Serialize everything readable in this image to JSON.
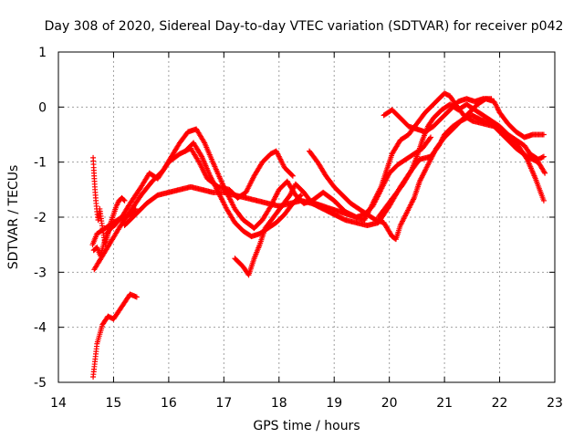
{
  "chart_data": {
    "type": "scatter",
    "title": "Day 308 of 2020, Sidereal Day-to-day VTEC variation (SDTVAR) for receiver p042",
    "xlabel": "GPS time / hours",
    "ylabel": "SDTVAR / TECUs",
    "xlim": [
      14,
      23
    ],
    "ylim": [
      -5,
      1
    ],
    "xticks": [
      "14",
      "15",
      "16",
      "17",
      "18",
      "19",
      "20",
      "21",
      "22",
      "23"
    ],
    "yticks": [
      "1",
      "0",
      "-1",
      "-2",
      "-3",
      "-4",
      "-5"
    ],
    "grid": true,
    "marker": "+",
    "color": "#ff0000",
    "series": [
      {
        "name": "track-1",
        "points": [
          [
            14.63,
            -4.9
          ],
          [
            14.7,
            -4.3
          ],
          [
            14.8,
            -3.95
          ],
          [
            14.9,
            -3.8
          ],
          [
            15.0,
            -3.85
          ],
          [
            15.1,
            -3.7
          ],
          [
            15.2,
            -3.55
          ],
          [
            15.3,
            -3.4
          ],
          [
            15.42,
            -3.45
          ]
        ]
      },
      {
        "name": "track-2",
        "points": [
          [
            14.62,
            -2.5
          ],
          [
            14.7,
            -2.3
          ],
          [
            14.85,
            -2.2
          ],
          [
            15.0,
            -2.1
          ],
          [
            15.15,
            -2.0
          ],
          [
            15.3,
            -1.75
          ],
          [
            15.5,
            -1.45
          ],
          [
            15.65,
            -1.2
          ],
          [
            15.8,
            -1.3
          ],
          [
            16.0,
            -1.0
          ],
          [
            16.2,
            -0.85
          ],
          [
            16.4,
            -0.75
          ],
          [
            16.55,
            -1.0
          ],
          [
            16.7,
            -1.3
          ],
          [
            16.9,
            -1.45
          ],
          [
            17.1,
            -1.5
          ],
          [
            17.25,
            -1.65
          ],
          [
            17.4,
            -1.55
          ],
          [
            17.55,
            -1.25
          ],
          [
            17.7,
            -1.0
          ],
          [
            17.85,
            -0.85
          ],
          [
            17.95,
            -0.8
          ],
          [
            18.1,
            -1.1
          ],
          [
            18.25,
            -1.25
          ]
        ]
      },
      {
        "name": "track-3",
        "points": [
          [
            14.65,
            -2.95
          ],
          [
            14.8,
            -2.7
          ],
          [
            14.95,
            -2.45
          ],
          [
            15.1,
            -2.2
          ],
          [
            15.3,
            -1.9
          ],
          [
            15.5,
            -1.6
          ],
          [
            15.7,
            -1.35
          ],
          [
            15.9,
            -1.15
          ],
          [
            16.05,
            -0.9
          ],
          [
            16.2,
            -0.65
          ],
          [
            16.35,
            -0.45
          ],
          [
            16.5,
            -0.4
          ],
          [
            16.65,
            -0.65
          ],
          [
            16.8,
            -1.0
          ],
          [
            17.0,
            -1.45
          ],
          [
            17.2,
            -1.85
          ],
          [
            17.35,
            -2.05
          ],
          [
            17.55,
            -2.2
          ],
          [
            17.7,
            -2.05
          ],
          [
            17.85,
            -1.8
          ],
          [
            18.0,
            -1.5
          ],
          [
            18.15,
            -1.35
          ],
          [
            18.3,
            -1.6
          ],
          [
            18.45,
            -1.75
          ],
          [
            18.6,
            -1.7
          ],
          [
            18.8,
            -1.55
          ],
          [
            19.0,
            -1.7
          ],
          [
            19.2,
            -1.9
          ],
          [
            19.4,
            -2.0
          ],
          [
            19.55,
            -2.05
          ],
          [
            19.7,
            -1.75
          ],
          [
            19.85,
            -1.45
          ],
          [
            19.95,
            -1.15
          ],
          [
            20.05,
            -0.85
          ],
          [
            20.2,
            -0.6
          ],
          [
            20.35,
            -0.5
          ],
          [
            20.5,
            -0.3
          ],
          [
            20.65,
            -0.1
          ],
          [
            20.8,
            0.05
          ],
          [
            20.9,
            0.15
          ],
          [
            21.0,
            0.25
          ],
          [
            21.1,
            0.2
          ],
          [
            21.2,
            0.05
          ],
          [
            21.35,
            -0.15
          ],
          [
            21.5,
            -0.25
          ],
          [
            21.7,
            -0.3
          ],
          [
            21.9,
            -0.35
          ],
          [
            22.1,
            -0.55
          ],
          [
            22.3,
            -0.75
          ],
          [
            22.5,
            -0.9
          ],
          [
            22.7,
            -1.0
          ],
          [
            22.82,
            -1.2
          ]
        ]
      },
      {
        "name": "track-4",
        "points": [
          [
            15.2,
            -2.15
          ],
          [
            15.4,
            -1.95
          ],
          [
            15.6,
            -1.75
          ],
          [
            15.8,
            -1.6
          ],
          [
            16.0,
            -1.55
          ],
          [
            16.2,
            -1.5
          ],
          [
            16.4,
            -1.45
          ],
          [
            16.6,
            -1.5
          ],
          [
            16.8,
            -1.55
          ],
          [
            17.0,
            -1.55
          ],
          [
            17.2,
            -1.6
          ],
          [
            17.4,
            -1.65
          ],
          [
            17.6,
            -1.7
          ],
          [
            17.8,
            -1.75
          ],
          [
            18.0,
            -1.8
          ],
          [
            18.2,
            -1.75
          ],
          [
            18.4,
            -1.7
          ],
          [
            18.6,
            -1.75
          ],
          [
            18.8,
            -1.85
          ],
          [
            19.0,
            -1.95
          ],
          [
            19.2,
            -2.05
          ],
          [
            19.4,
            -2.1
          ],
          [
            19.6,
            -2.15
          ],
          [
            19.8,
            -2.1
          ],
          [
            20.0,
            -1.8
          ],
          [
            20.2,
            -1.45
          ],
          [
            20.4,
            -1.15
          ],
          [
            20.55,
            -0.95
          ],
          [
            20.75,
            -0.9
          ],
          [
            20.9,
            -0.7
          ],
          [
            21.0,
            -0.5
          ],
          [
            21.15,
            -0.35
          ],
          [
            21.3,
            -0.25
          ],
          [
            21.5,
            -0.15
          ],
          [
            21.7,
            -0.25
          ],
          [
            21.9,
            -0.3
          ],
          [
            22.1,
            -0.45
          ],
          [
            22.3,
            -0.65
          ],
          [
            22.5,
            -0.95
          ],
          [
            22.65,
            -1.3
          ],
          [
            22.8,
            -1.7
          ]
        ]
      },
      {
        "name": "track-5",
        "points": [
          [
            17.2,
            -2.75
          ],
          [
            17.35,
            -2.9
          ],
          [
            17.45,
            -3.05
          ],
          [
            17.55,
            -2.75
          ],
          [
            17.65,
            -2.5
          ],
          [
            17.75,
            -2.2
          ],
          [
            17.9,
            -2.0
          ],
          [
            18.05,
            -1.8
          ],
          [
            18.2,
            -1.6
          ],
          [
            18.3,
            -1.4
          ],
          [
            18.45,
            -1.55
          ],
          [
            18.6,
            -1.75
          ],
          [
            18.75,
            -1.8
          ]
        ]
      },
      {
        "name": "track-6",
        "points": [
          [
            16.3,
            -0.8
          ],
          [
            16.45,
            -0.65
          ],
          [
            16.6,
            -0.9
          ],
          [
            16.75,
            -1.25
          ],
          [
            16.9,
            -1.55
          ],
          [
            17.05,
            -1.85
          ],
          [
            17.2,
            -2.1
          ],
          [
            17.35,
            -2.25
          ],
          [
            17.5,
            -2.35
          ],
          [
            17.65,
            -2.3
          ],
          [
            17.8,
            -2.2
          ],
          [
            17.95,
            -2.1
          ],
          [
            18.1,
            -1.95
          ],
          [
            18.25,
            -1.75
          ],
          [
            18.4,
            -1.6
          ]
        ]
      },
      {
        "name": "track-7",
        "points": [
          [
            18.55,
            -0.8
          ],
          [
            18.7,
            -1.0
          ],
          [
            18.85,
            -1.25
          ],
          [
            19.0,
            -1.45
          ],
          [
            19.15,
            -1.6
          ],
          [
            19.3,
            -1.75
          ],
          [
            19.45,
            -1.85
          ],
          [
            19.6,
            -1.95
          ],
          [
            19.75,
            -2.05
          ],
          [
            19.9,
            -2.1
          ],
          [
            20.05,
            -2.35
          ],
          [
            20.12,
            -2.4
          ],
          [
            20.2,
            -2.15
          ],
          [
            20.3,
            -1.95
          ],
          [
            20.45,
            -1.65
          ],
          [
            20.55,
            -1.35
          ],
          [
            20.7,
            -1.05
          ],
          [
            20.85,
            -0.75
          ],
          [
            21.0,
            -0.55
          ],
          [
            21.15,
            -0.4
          ],
          [
            21.3,
            -0.25
          ],
          [
            21.45,
            -0.1
          ],
          [
            21.6,
            0.05
          ],
          [
            21.75,
            0.15
          ],
          [
            21.9,
            0.1
          ],
          [
            22.0,
            -0.1
          ],
          [
            22.15,
            -0.3
          ],
          [
            22.3,
            -0.45
          ],
          [
            22.45,
            -0.55
          ],
          [
            22.6,
            -0.5
          ],
          [
            22.8,
            -0.5
          ]
        ]
      },
      {
        "name": "track-8",
        "points": [
          [
            19.8,
            -2.0
          ],
          [
            19.95,
            -1.8
          ],
          [
            20.1,
            -1.6
          ],
          [
            20.25,
            -1.4
          ],
          [
            20.4,
            -1.15
          ],
          [
            20.5,
            -0.9
          ],
          [
            20.6,
            -0.6
          ],
          [
            20.7,
            -0.35
          ],
          [
            20.8,
            -0.2
          ],
          [
            20.95,
            -0.05
          ],
          [
            21.1,
            0.05
          ],
          [
            21.25,
            -0.05
          ],
          [
            21.4,
            0.05
          ],
          [
            21.55,
            -0.05
          ],
          [
            21.7,
            -0.15
          ],
          [
            21.85,
            -0.25
          ],
          [
            22.0,
            -0.35
          ],
          [
            22.15,
            -0.5
          ],
          [
            22.3,
            -0.6
          ],
          [
            22.45,
            -0.7
          ],
          [
            22.55,
            -0.85
          ],
          [
            22.7,
            -0.95
          ],
          [
            22.8,
            -0.9
          ]
        ]
      },
      {
        "name": "track-9",
        "points": [
          [
            19.9,
            -0.15
          ],
          [
            20.05,
            -0.05
          ],
          [
            20.2,
            -0.2
          ],
          [
            20.35,
            -0.35
          ],
          [
            20.5,
            -0.4
          ],
          [
            20.65,
            -0.45
          ],
          [
            20.8,
            -0.35
          ],
          [
            20.95,
            -0.2
          ],
          [
            21.1,
            -0.05
          ],
          [
            21.25,
            0.1
          ],
          [
            21.4,
            0.15
          ],
          [
            21.55,
            0.1
          ],
          [
            21.7,
            0.15
          ],
          [
            21.85,
            0.15
          ]
        ]
      },
      {
        "name": "track-10",
        "points": [
          [
            18.5,
            -1.7
          ],
          [
            18.65,
            -1.75
          ],
          [
            18.8,
            -1.8
          ],
          [
            18.95,
            -1.85
          ],
          [
            19.1,
            -1.9
          ],
          [
            19.25,
            -1.95
          ],
          [
            19.4,
            -2.0
          ],
          [
            19.55,
            -1.95
          ],
          [
            19.7,
            -1.8
          ],
          [
            19.85,
            -1.5
          ],
          [
            20.0,
            -1.2
          ],
          [
            20.15,
            -1.05
          ],
          [
            20.3,
            -0.95
          ],
          [
            20.45,
            -0.85
          ],
          [
            20.6,
            -0.75
          ],
          [
            20.75,
            -0.55
          ]
        ]
      },
      {
        "name": "track-11",
        "points": [
          [
            14.63,
            -0.92
          ],
          [
            14.64,
            -1.1
          ],
          [
            14.66,
            -1.45
          ],
          [
            14.68,
            -1.7
          ],
          [
            14.7,
            -1.9
          ],
          [
            14.72,
            -2.05
          ],
          [
            14.75,
            -1.85
          ],
          [
            14.8,
            -2.2
          ],
          [
            14.85,
            -2.5
          ],
          [
            14.9,
            -2.3
          ],
          [
            14.95,
            -2.1
          ],
          [
            15.0,
            -1.95
          ],
          [
            15.05,
            -1.8
          ],
          [
            15.1,
            -1.7
          ],
          [
            15.15,
            -1.65
          ],
          [
            15.2,
            -1.7
          ]
        ]
      },
      {
        "name": "track-12",
        "points": [
          [
            14.64,
            -2.6
          ],
          [
            14.7,
            -2.55
          ],
          [
            14.76,
            -2.7
          ],
          [
            14.82,
            -2.5
          ],
          [
            14.88,
            -2.3
          ],
          [
            14.95,
            -2.2
          ],
          [
            15.02,
            -2.15
          ],
          [
            15.1,
            -2.05
          ],
          [
            15.2,
            -2.0
          ],
          [
            15.3,
            -1.95
          ],
          [
            15.4,
            -1.85
          ]
        ]
      }
    ]
  }
}
